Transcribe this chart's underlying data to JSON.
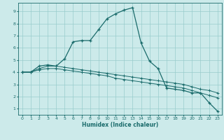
{
  "title": "",
  "xlabel": "Humidex (Indice chaleur)",
  "bg_color": "#cceaea",
  "line_color": "#1a6b6b",
  "grid_color": "#99cccc",
  "xlim": [
    -0.5,
    23.5
  ],
  "ylim": [
    0.5,
    9.7
  ],
  "xticks": [
    0,
    1,
    2,
    3,
    4,
    5,
    6,
    7,
    8,
    9,
    10,
    11,
    12,
    13,
    14,
    15,
    16,
    17,
    18,
    19,
    20,
    21,
    22,
    23
  ],
  "yticks": [
    1,
    2,
    3,
    4,
    5,
    6,
    7,
    8,
    9
  ],
  "series1_x": [
    0,
    1,
    2,
    3,
    4,
    5,
    6,
    7,
    8,
    9,
    10,
    11,
    12,
    13,
    14,
    15,
    16,
    17,
    18,
    19,
    20,
    21,
    22,
    23
  ],
  "series1_y": [
    4.0,
    4.0,
    4.5,
    4.6,
    4.5,
    5.1,
    6.5,
    6.6,
    6.6,
    7.5,
    8.4,
    8.8,
    9.1,
    9.3,
    6.4,
    4.9,
    4.3,
    2.7,
    2.6,
    2.5,
    2.3,
    2.3,
    1.5,
    0.8
  ],
  "series2_x": [
    0,
    1,
    2,
    3,
    4,
    5,
    6,
    7,
    8,
    9,
    10,
    11,
    12,
    13,
    14,
    15,
    16,
    17,
    18,
    19,
    20,
    21,
    22,
    23
  ],
  "series2_y": [
    4.0,
    4.0,
    4.3,
    4.5,
    4.5,
    4.4,
    4.3,
    4.2,
    4.1,
    4.0,
    3.9,
    3.8,
    3.7,
    3.6,
    3.5,
    3.4,
    3.3,
    3.2,
    3.1,
    3.0,
    2.8,
    2.6,
    2.5,
    2.3
  ],
  "series3_x": [
    0,
    1,
    2,
    3,
    4,
    5,
    6,
    7,
    8,
    9,
    10,
    11,
    12,
    13,
    14,
    15,
    16,
    17,
    18,
    19,
    20,
    21,
    22,
    23
  ],
  "series3_y": [
    4.0,
    4.0,
    4.2,
    4.3,
    4.3,
    4.2,
    4.1,
    4.0,
    3.9,
    3.8,
    3.7,
    3.5,
    3.4,
    3.3,
    3.2,
    3.1,
    3.0,
    2.9,
    2.8,
    2.7,
    2.5,
    2.3,
    2.1,
    1.9
  ]
}
